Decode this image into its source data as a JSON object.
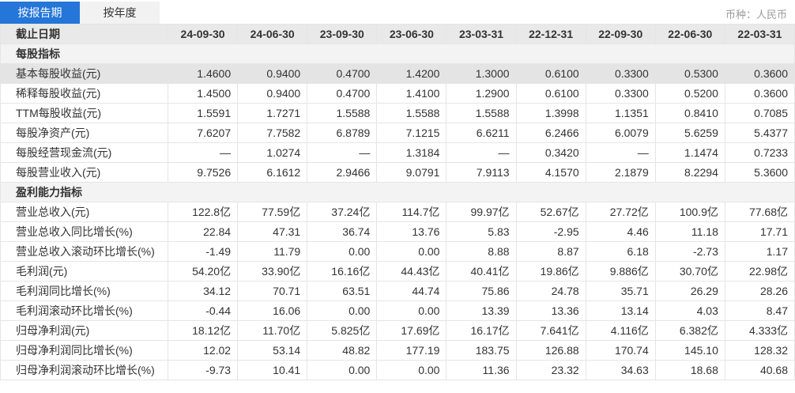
{
  "tabs": [
    {
      "label": "按报告期",
      "active": true
    },
    {
      "label": "按年度",
      "active": false
    }
  ],
  "currency_label": "币种：人民币",
  "colors": {
    "active_tab_blue": "#2476d8",
    "header_gray": "#e9e9e9",
    "section_gray": "#f3f3f3",
    "highlight_row_gray": "#e4e4e4",
    "text": "#333333",
    "muted_text": "#9b9b9b"
  },
  "table": {
    "header": {
      "label": "截止日期",
      "dates": [
        "24-09-30",
        "24-06-30",
        "23-09-30",
        "23-06-30",
        "23-03-31",
        "22-12-31",
        "22-09-30",
        "22-06-30",
        "22-03-31"
      ]
    },
    "sections": [
      {
        "title": "每股指标",
        "rows": [
          {
            "label": "基本每股收益(元)",
            "highlight": true,
            "values": [
              "1.4600",
              "0.9400",
              "0.4700",
              "1.4200",
              "1.3000",
              "0.6100",
              "0.3300",
              "0.5300",
              "0.3600"
            ]
          },
          {
            "label": "稀释每股收益(元)",
            "values": [
              "1.4500",
              "0.9400",
              "0.4700",
              "1.4100",
              "1.2900",
              "0.6100",
              "0.3300",
              "0.5200",
              "0.3600"
            ]
          },
          {
            "label": "TTM每股收益(元)",
            "values": [
              "1.5591",
              "1.7271",
              "1.5588",
              "1.5588",
              "1.5588",
              "1.3998",
              "1.1351",
              "0.8410",
              "0.7085"
            ]
          },
          {
            "label": "每股净资产(元)",
            "values": [
              "7.6207",
              "7.7582",
              "6.8789",
              "7.1215",
              "6.6211",
              "6.2466",
              "6.0079",
              "5.6259",
              "5.4377"
            ]
          },
          {
            "label": "每股经营现金流(元)",
            "values": [
              "—",
              "1.0274",
              "—",
              "1.3184",
              "—",
              "0.3420",
              "—",
              "1.1474",
              "0.7233"
            ]
          },
          {
            "label": "每股营业收入(元)",
            "values": [
              "9.7526",
              "6.1612",
              "2.9466",
              "9.0791",
              "7.9113",
              "4.1570",
              "2.1879",
              "8.2294",
              "5.3600"
            ]
          }
        ]
      },
      {
        "title": "盈利能力指标",
        "rows": [
          {
            "label": "营业总收入(元)",
            "values": [
              "122.8亿",
              "77.59亿",
              "37.24亿",
              "114.7亿",
              "99.97亿",
              "52.67亿",
              "27.72亿",
              "100.9亿",
              "77.68亿"
            ]
          },
          {
            "label": "营业总收入同比增长(%)",
            "values": [
              "22.84",
              "47.31",
              "36.74",
              "13.76",
              "5.83",
              "-2.95",
              "4.46",
              "11.18",
              "17.71"
            ]
          },
          {
            "label": "营业总收入滚动环比增长(%)",
            "values": [
              "-1.49",
              "11.79",
              "0.00",
              "0.00",
              "8.88",
              "8.87",
              "6.18",
              "-2.73",
              "1.17"
            ]
          },
          {
            "label": "毛利润(元)",
            "values": [
              "54.20亿",
              "33.90亿",
              "16.16亿",
              "44.43亿",
              "40.41亿",
              "19.86亿",
              "9.886亿",
              "30.70亿",
              "22.98亿"
            ]
          },
          {
            "label": "毛利润同比增长(%)",
            "values": [
              "34.12",
              "70.71",
              "63.51",
              "44.74",
              "75.86",
              "24.78",
              "35.71",
              "26.29",
              "28.26"
            ]
          },
          {
            "label": "毛利润滚动环比增长(%)",
            "values": [
              "-0.44",
              "16.06",
              "0.00",
              "0.00",
              "13.39",
              "13.36",
              "13.14",
              "4.03",
              "8.47"
            ]
          },
          {
            "label": "归母净利润(元)",
            "values": [
              "18.12亿",
              "11.70亿",
              "5.825亿",
              "17.69亿",
              "16.17亿",
              "7.641亿",
              "4.116亿",
              "6.382亿",
              "4.333亿"
            ]
          },
          {
            "label": "归母净利润同比增长(%)",
            "values": [
              "12.02",
              "53.14",
              "48.82",
              "177.19",
              "183.75",
              "126.88",
              "170.74",
              "145.10",
              "128.32"
            ]
          },
          {
            "label": "归母净利润滚动环比增长(%)",
            "values": [
              "-9.73",
              "10.41",
              "0.00",
              "0.00",
              "11.36",
              "23.32",
              "34.63",
              "18.68",
              "40.68"
            ]
          }
        ]
      }
    ]
  }
}
